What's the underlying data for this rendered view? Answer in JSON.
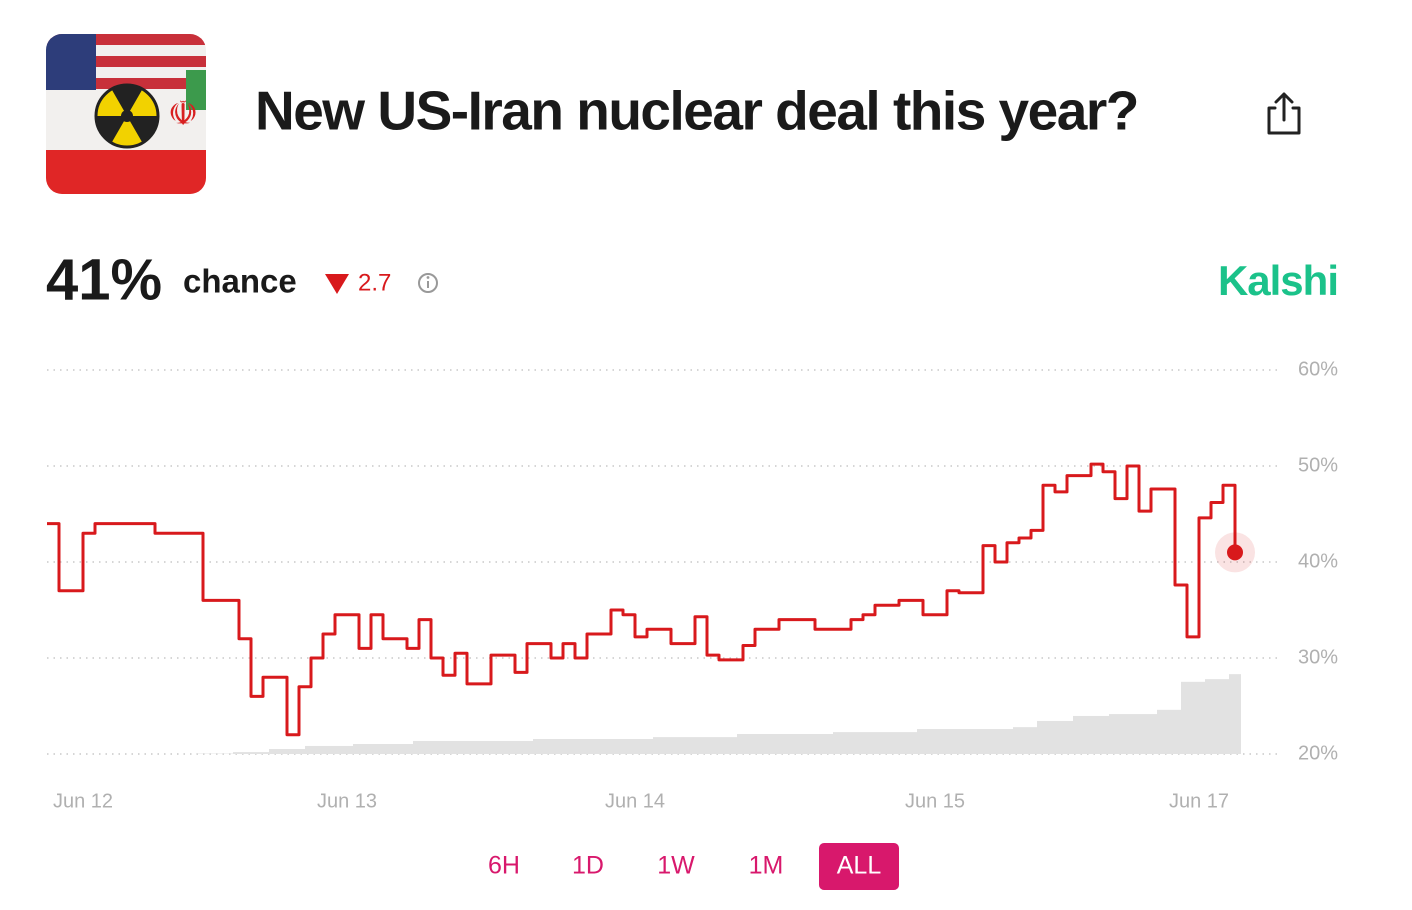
{
  "header": {
    "title": "New US-Iran nuclear deal this year?"
  },
  "summary": {
    "chance": "41%",
    "chance_label": "chance",
    "change": "2.7",
    "source": "Kalshi"
  },
  "chart_data": {
    "type": "line",
    "categories": [
      null,
      null,
      null,
      "Jun 12",
      null,
      null,
      null,
      null,
      null,
      null,
      null,
      null,
      null,
      null,
      null,
      null,
      null,
      null,
      null,
      null,
      null,
      null,
      null,
      null,
      null,
      "Jun 13",
      null,
      null,
      null,
      null,
      null,
      null,
      null,
      null,
      null,
      null,
      null,
      null,
      null,
      null,
      null,
      null,
      null,
      null,
      null,
      null,
      null,
      null,
      null,
      "Jun 14",
      null,
      null,
      null,
      null,
      null,
      null,
      null,
      null,
      null,
      null,
      null,
      null,
      null,
      null,
      null,
      null,
      null,
      null,
      null,
      null,
      null,
      null,
      null,
      null,
      "Jun 15",
      null,
      null,
      null,
      null,
      null,
      null,
      null,
      null,
      null,
      null,
      null,
      null,
      null,
      null,
      null,
      null,
      null,
      null,
      null,
      null,
      null,
      "Jun 17",
      null,
      null,
      null
    ],
    "series": [
      {
        "color": "#d8191c",
        "values": [
          44,
          37,
          37,
          43,
          44,
          44,
          44,
          44,
          44,
          43,
          43,
          43,
          43,
          36,
          36,
          36,
          32,
          26,
          28,
          28,
          22,
          27,
          30,
          32.5,
          34.5,
          34.5,
          31,
          34.5,
          32,
          32,
          31,
          34,
          30,
          28.2,
          30.5,
          27.3,
          27.3,
          30.3,
          30.3,
          28.5,
          31.5,
          31.5,
          30,
          31.5,
          30,
          32.5,
          32.5,
          35,
          34.5,
          32.2,
          33,
          33,
          31.5,
          31.5,
          34.3,
          30.3,
          29.8,
          29.8,
          31.3,
          33,
          33,
          34,
          34,
          34,
          33,
          33,
          33,
          34,
          34.5,
          35.5,
          35.5,
          36,
          36,
          34.5,
          34.5,
          37,
          36.8,
          36.8,
          41.7,
          40,
          42,
          42.5,
          43.3,
          48,
          47.3,
          49,
          49,
          50.2,
          49.4,
          46.6,
          50,
          45.3,
          47.6,
          47.6,
          37.6,
          32.2,
          44.6,
          46.2,
          48,
          41
        ]
      },
      {
        "type": "bar",
        "axis": "y2",
        "color": "#e2e2e2",
        "values": [
          0,
          0,
          0,
          0,
          0,
          0,
          0,
          0,
          0,
          0,
          0,
          0,
          0,
          0.1,
          0.1,
          0.1,
          0.5,
          0.5,
          0.5,
          1.3,
          1.3,
          1.3,
          2.1,
          2.1,
          2.1,
          2.1,
          2.6,
          2.6,
          2.6,
          2.6,
          2.6,
          3.4,
          3.4,
          3.4,
          3.4,
          3.4,
          3.4,
          3.4,
          3.4,
          3.4,
          3.4,
          3.9,
          3.9,
          3.9,
          3.9,
          3.9,
          3.9,
          3.9,
          3.9,
          3.9,
          3.9,
          4.4,
          4.4,
          4.4,
          4.4,
          4.4,
          4.4,
          4.4,
          5.2,
          5.2,
          5.2,
          5.2,
          5.2,
          5.2,
          5.2,
          5.2,
          5.7,
          5.7,
          5.7,
          5.7,
          5.7,
          5.7,
          5.7,
          6.5,
          6.5,
          6.5,
          6.5,
          6.5,
          6.5,
          6.5,
          6.5,
          7,
          7,
          8.6,
          8.6,
          8.6,
          9.9,
          9.9,
          9.9,
          10.4,
          10.4,
          10.4,
          10.4,
          11.5,
          11.5,
          18.8,
          18.8,
          19.5,
          19.5,
          20.8
        ]
      }
    ],
    "ylim": [
      20,
      60
    ],
    "yticks": [
      {
        "value": 20,
        "label": "20%"
      },
      {
        "value": 30,
        "label": "30%"
      },
      {
        "value": 40,
        "label": "40%"
      },
      {
        "value": 50,
        "label": "50%"
      },
      {
        "value": 60,
        "label": "60%"
      }
    ],
    "y2lim": [
      0,
      100
    ],
    "grid": true,
    "end_marker": true
  },
  "range_buttons": {
    "options": [
      "6H",
      "1D",
      "1W",
      "1M",
      "ALL"
    ],
    "active": 4
  }
}
